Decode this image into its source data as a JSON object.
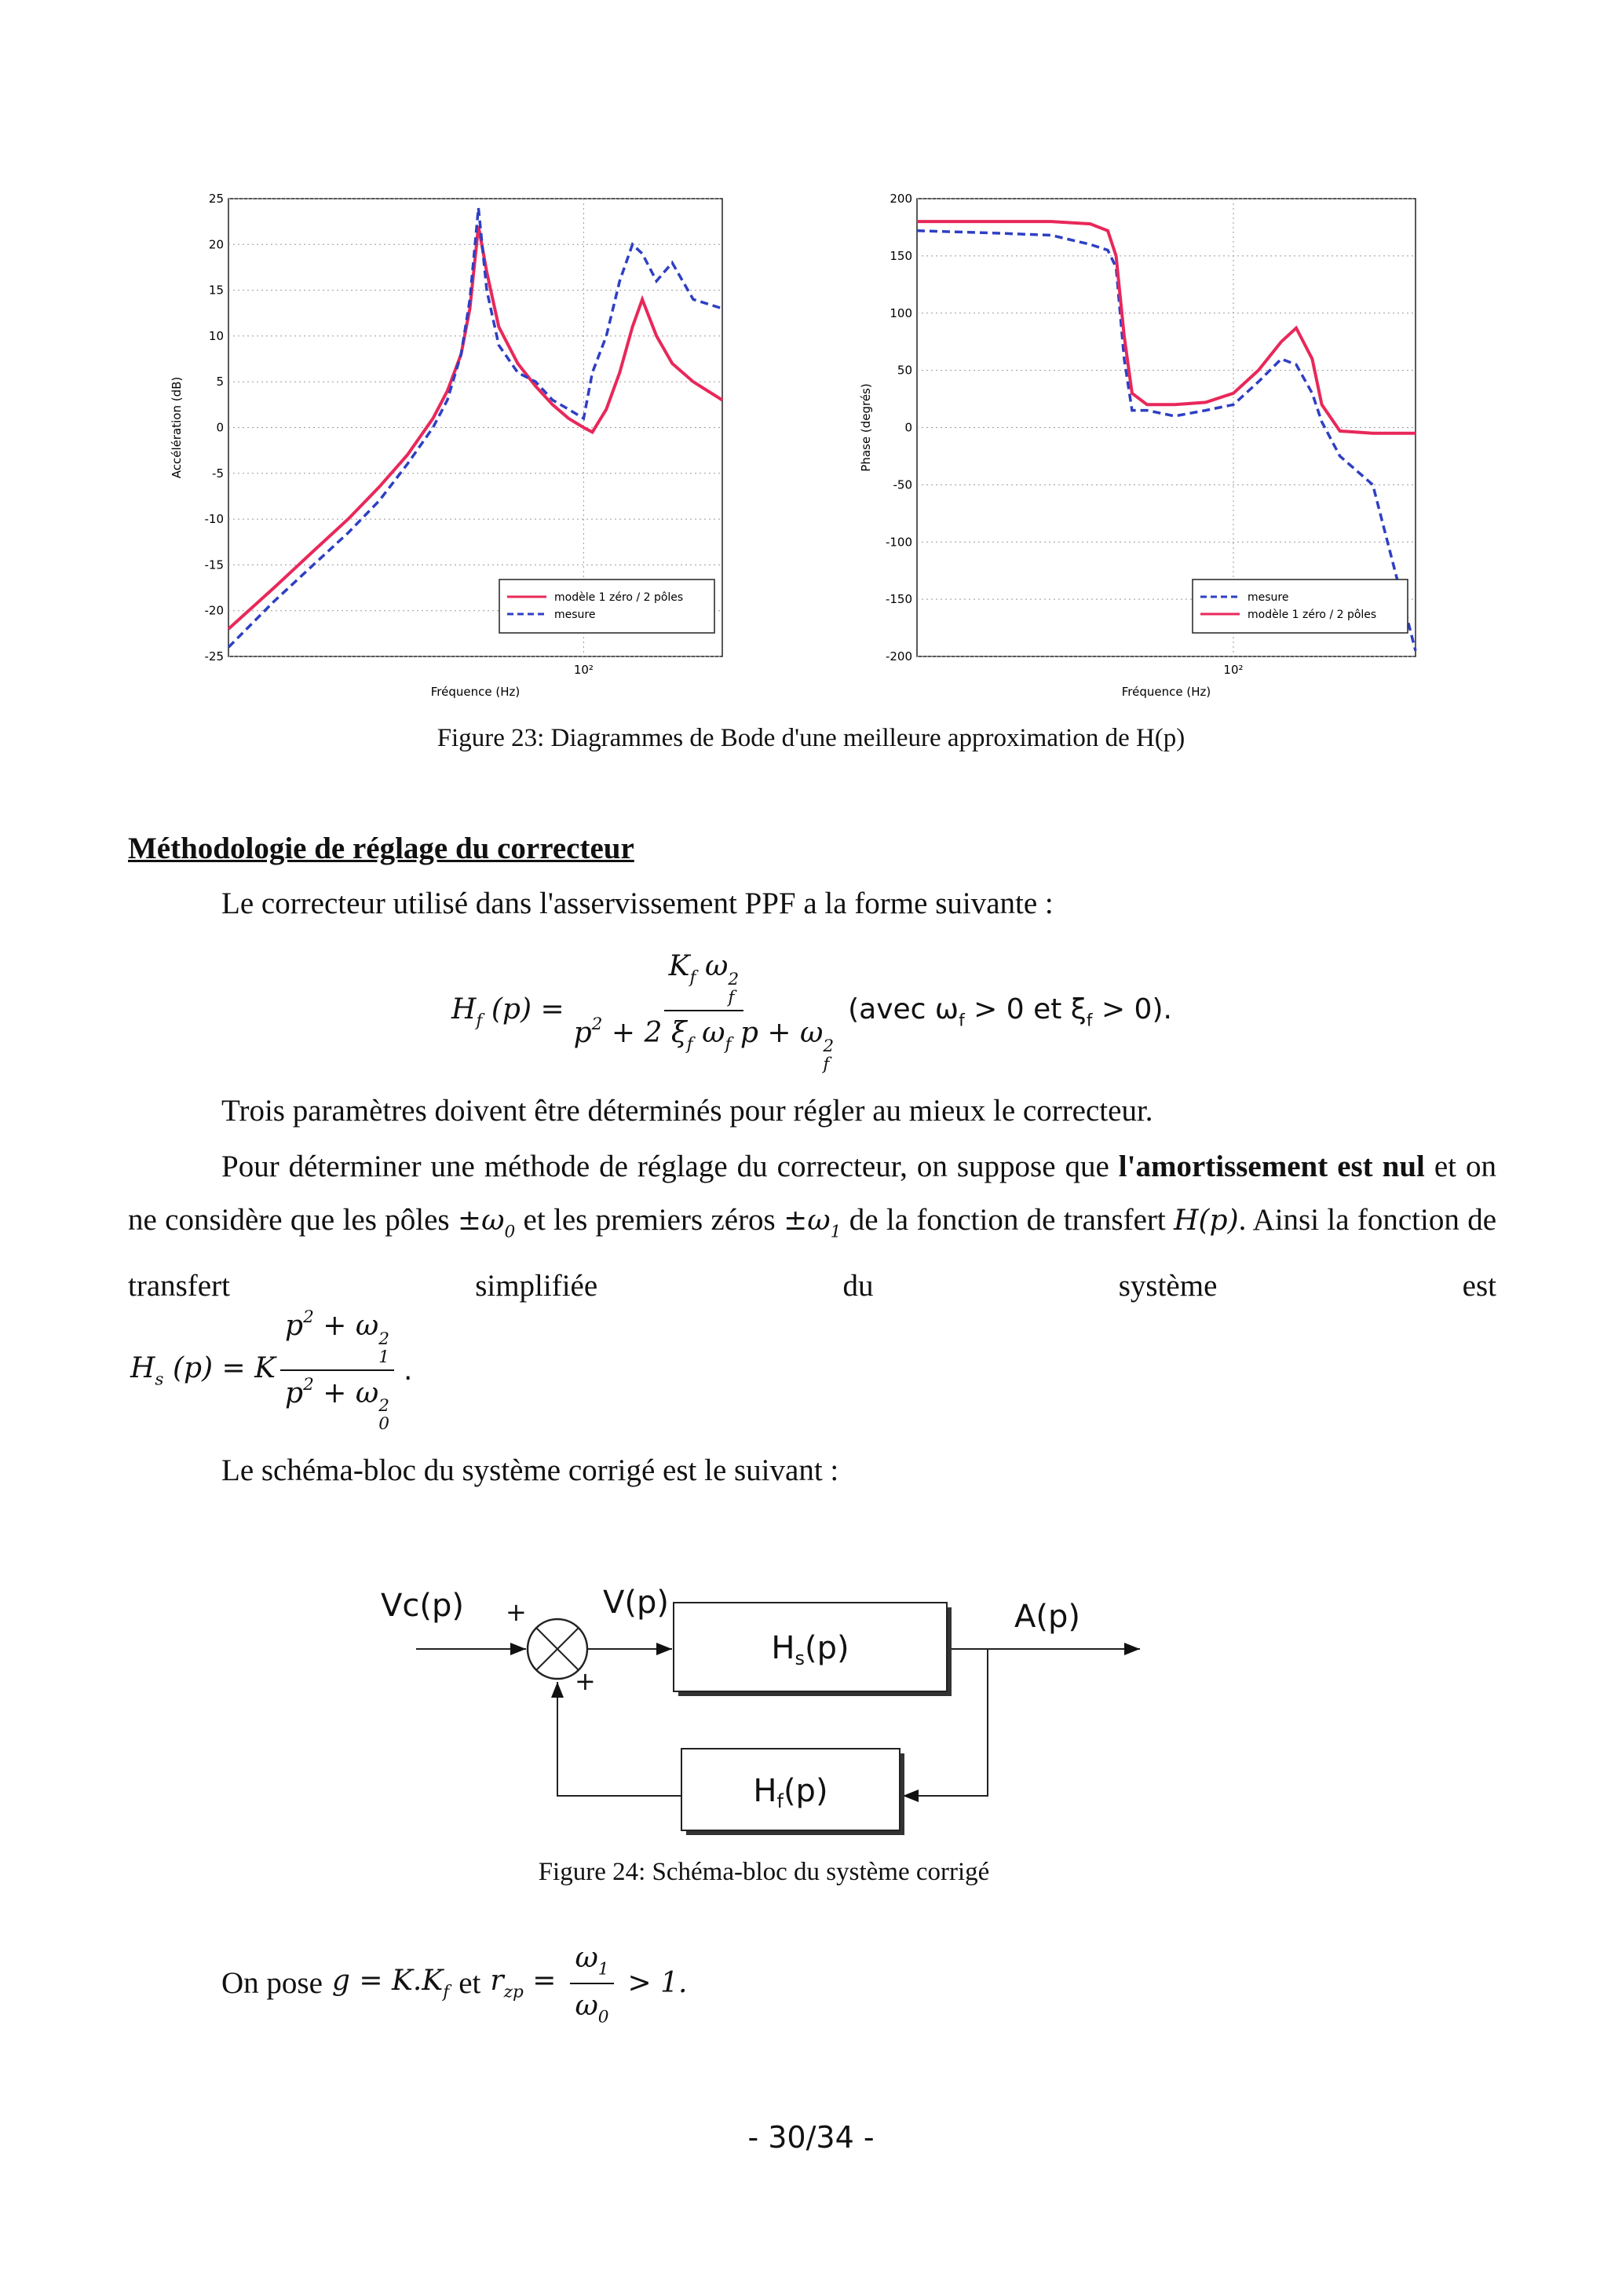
{
  "chart_data": [
    {
      "type": "line",
      "log_x": true,
      "grid": true,
      "legend": "lower right",
      "xlabel": "Fréquence (Hz)",
      "ylabel": "Accélération (dB)",
      "xlim": [
        30,
        160
      ],
      "xticks": [
        {
          "value": 100,
          "label": "10²"
        }
      ],
      "ylim": [
        -25,
        25
      ],
      "yticks": [
        -25,
        -20,
        -15,
        -10,
        -5,
        0,
        5,
        10,
        15,
        20,
        25
      ],
      "x": [
        30,
        35,
        40,
        45,
        50,
        55,
        60,
        63,
        66,
        68,
        70,
        72,
        75,
        80,
        85,
        90,
        95,
        100,
        103,
        108,
        113,
        118,
        122,
        128,
        135,
        145,
        160
      ],
      "series": [
        {
          "name": "modèle 1 zéro / 2 pôles",
          "color": "#e8285a",
          "style": "solid",
          "values": [
            -22,
            -17.5,
            -13.5,
            -10,
            -6.5,
            -3,
            1,
            4,
            8,
            13,
            22,
            17,
            11,
            7,
            4.5,
            2.5,
            1,
            0,
            -0.5,
            2,
            6,
            11,
            14,
            10,
            7,
            5,
            3
          ]
        },
        {
          "name": "mesure",
          "color": "#2e3fc4",
          "style": "dashed",
          "values": [
            -24,
            -19,
            -15,
            -11.5,
            -8,
            -4,
            0,
            3,
            8,
            14,
            24,
            15,
            9,
            6,
            5,
            3,
            2,
            1,
            6,
            10,
            16,
            20,
            19,
            16,
            18,
            14,
            13
          ]
        }
      ]
    },
    {
      "type": "line",
      "log_x": true,
      "grid": true,
      "legend": "lower right",
      "xlabel": "Fréquence (Hz)",
      "ylabel": "Phase (degrés)",
      "xlim": [
        30,
        200
      ],
      "xticks": [
        {
          "value": 100,
          "label": "10²"
        }
      ],
      "ylim": [
        -200,
        200
      ],
      "yticks": [
        -200,
        -150,
        -100,
        -50,
        0,
        50,
        100,
        150,
        200
      ],
      "x": [
        30,
        40,
        50,
        58,
        62,
        64,
        66,
        68,
        72,
        80,
        90,
        100,
        110,
        120,
        127,
        135,
        140,
        150,
        170,
        200
      ],
      "series": [
        {
          "name": "mesure",
          "color": "#2e3fc4",
          "style": "dashed",
          "values": [
            172,
            170,
            168,
            160,
            155,
            140,
            60,
            15,
            15,
            10,
            15,
            20,
            40,
            60,
            55,
            30,
            5,
            -25,
            -50,
            -195
          ]
        },
        {
          "name": "modèle 1 zéro / 2 pôles",
          "color": "#e8285a",
          "style": "solid",
          "values": [
            180,
            180,
            180,
            178,
            172,
            150,
            80,
            30,
            20,
            20,
            22,
            30,
            50,
            75,
            87,
            60,
            20,
            -3,
            -5,
            -5
          ]
        }
      ]
    }
  ],
  "figure23_caption": "Figure 23: Diagrammes de Bode d'une meilleure approximation de H(p)",
  "heading": "Méthodologie de réglage du correcteur",
  "intro": "Le correcteur utilisé dans l'asservissement PPF a la forme suivante :",
  "formula1": {
    "lhs": [
      {
        "t": "H",
        "sub": "f"
      },
      {
        "t": "(p) ="
      }
    ],
    "num": [
      {
        "t": "K",
        "sub": "f"
      },
      {
        "t": "ω",
        "sub": "f",
        "sup": "2"
      }
    ],
    "den": [
      {
        "t": "p",
        "sup": "2"
      },
      {
        "t": "+ 2 ξ",
        "sub": "f"
      },
      {
        "t": "ω",
        "sub": "f"
      },
      {
        "t": "p + ω",
        "sub": "f",
        "sup": "2"
      }
    ],
    "after": [
      {
        "t": "(avec ω",
        "sub": "f"
      },
      {
        "t": "> 0 et ξ",
        "sub": "f"
      },
      {
        "t": "> 0)."
      }
    ]
  },
  "params_sentence": "Trois paramètres doivent être déterminés pour régler au mieux le correcteur.",
  "paragraph": [
    {
      "text": "Pour déterminer une méthode de réglage du correcteur, on suppose que "
    },
    {
      "bold": "l'amortissement est nul"
    },
    {
      "text": " et on ne considère que les pôles "
    },
    {
      "math": [
        {
          "t": "±ω",
          "sub": "0"
        }
      ]
    },
    {
      "text": " et les premiers zéros "
    },
    {
      "math": [
        {
          "t": "±ω",
          "sub": "1"
        }
      ]
    },
    {
      "text": " de la fonction de transfert "
    },
    {
      "math": [
        {
          "t": "H(p)"
        }
      ]
    },
    {
      "text": ". Ainsi la fonction de transfert simplifiée du système est"
    }
  ],
  "formula2": {
    "lhs": [
      {
        "t": "H",
        "sub": "s"
      },
      {
        "t": "(p) = K"
      }
    ],
    "num": [
      {
        "t": "p",
        "sup": "2"
      },
      {
        "t": "+ ω",
        "sub": "1",
        "sup": "2"
      }
    ],
    "den": [
      {
        "t": "p",
        "sup": "2"
      },
      {
        "t": "+ ω",
        "sub": "0",
        "sup": "2"
      }
    ],
    "after": [
      {
        "t": "."
      }
    ]
  },
  "schema_sentence": "Le schéma-bloc du système corrigé est le suivant :",
  "diagram": {
    "input": "Vc(p)",
    "plus_top": "+",
    "plus_bottom": "+",
    "error": "V(p)",
    "output": "A(p)",
    "plant": {
      "t": "H",
      "sub": "s",
      "after": "(p)"
    },
    "controller": {
      "t": "H",
      "sub": "f",
      "after": "(p)"
    }
  },
  "figure24_caption": "Figure 24: Schéma-bloc du système corrigé",
  "pose": {
    "prefix": "On pose",
    "g": [
      {
        "t": "g = K.K",
        "sub": "f"
      }
    ],
    "et": "et",
    "r": [
      {
        "t": "r",
        "sub": "zp"
      },
      {
        "t": "="
      }
    ],
    "num": [
      {
        "t": "ω",
        "sub": "1"
      }
    ],
    "den": [
      {
        "t": "ω",
        "sub": "0"
      }
    ],
    "after": [
      {
        "t": "> 1."
      }
    ]
  },
  "page_number": "- 30/34 -"
}
